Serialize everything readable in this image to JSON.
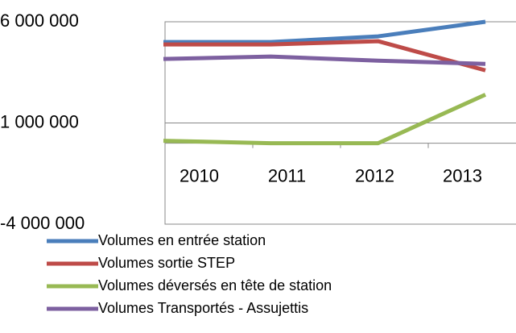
{
  "chart_data": {
    "type": "line",
    "categories": [
      "2010",
      "2011",
      "2012",
      "2013"
    ],
    "series": [
      {
        "name": "Volumes en entrée station",
        "color": "#4a7ebb",
        "values": [
          5000000,
          5000000,
          5280000,
          6000000
        ]
      },
      {
        "name": "Volumes sortie STEP",
        "color": "#be4b48",
        "values": [
          4880000,
          4880000,
          5040000,
          3600000
        ]
      },
      {
        "name": "Volumes déversés en tête de station",
        "color": "#98b954",
        "values": [
          120000,
          0,
          0,
          2400000
        ]
      },
      {
        "name": "Volumes Transportés - Assujettis",
        "color": "#7d60a0",
        "values": [
          4160000,
          4280000,
          4080000,
          3920000
        ]
      }
    ],
    "ylim": [
      -4000000,
      6000000
    ],
    "yticks": [
      {
        "value": -4000000,
        "label": "-4 000 000"
      },
      {
        "value": 1000000,
        "label": "1 000 000"
      },
      {
        "value": 6000000,
        "label": "6 000 000"
      }
    ],
    "grid": true,
    "legend": "bottom"
  }
}
